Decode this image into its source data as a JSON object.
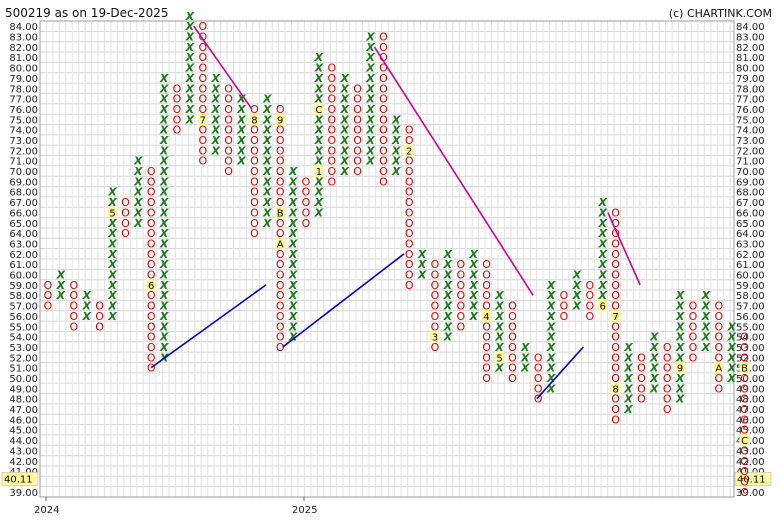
{
  "header": {
    "title": "500219 as on 19-Dec-2025",
    "credit": "(c) CHARTINK.COM"
  },
  "chart_data": {
    "type": "point-and-figure",
    "symbol": "500219",
    "as_on": "19-Dec-2025",
    "box_size": 1,
    "ylim": [
      39,
      84
    ],
    "y_ticks": [
      "84.00",
      "83.00",
      "82.00",
      "81.00",
      "80.00",
      "79.00",
      "78.00",
      "77.00",
      "76.00",
      "75.00",
      "74.00",
      "73.00",
      "72.00",
      "71.00",
      "70.00",
      "69.00",
      "68.00",
      "67.00",
      "66.00",
      "65.00",
      "64.00",
      "63.00",
      "62.00",
      "61.00",
      "60.00",
      "59.00",
      "58.00",
      "57.00",
      "56.00",
      "55.00",
      "54.00",
      "53.00",
      "52.00",
      "51.00",
      "50.00",
      "49.00",
      "48.00",
      "47.00",
      "46.00",
      "45.00",
      "44.00",
      "43.00",
      "42.00",
      "41.00",
      "40.00",
      "39.00"
    ],
    "last_price": "40.11",
    "x_labels": [
      {
        "label": "2024",
        "column": 0
      },
      {
        "label": "2025",
        "column": 20
      }
    ],
    "grid": true,
    "colors": {
      "x": "#1f7a1f",
      "o": "#dd0000",
      "support": "#0000cc",
      "resistance": "#cc0099",
      "highlight": "#fff6a0"
    },
    "columns": [
      {
        "type": "O",
        "high": 59,
        "low": 57
      },
      {
        "type": "X",
        "high": 60,
        "low": 58
      },
      {
        "type": "O",
        "high": 59,
        "low": 55
      },
      {
        "type": "X",
        "high": 58,
        "low": 56
      },
      {
        "type": "O",
        "high": 57,
        "low": 55
      },
      {
        "type": "X",
        "high": 68,
        "low": 56,
        "markers": [
          {
            "box": 66,
            "label": "5"
          }
        ]
      },
      {
        "type": "O",
        "high": 67,
        "low": 64
      },
      {
        "type": "X",
        "high": 71,
        "low": 65
      },
      {
        "type": "O",
        "high": 70,
        "low": 51,
        "markers": [
          {
            "box": 59,
            "label": "6"
          }
        ]
      },
      {
        "type": "X",
        "high": 79,
        "low": 52
      },
      {
        "type": "O",
        "high": 78,
        "low": 74
      },
      {
        "type": "X",
        "high": 85,
        "low": 75
      },
      {
        "type": "O",
        "high": 84,
        "low": 71,
        "markers": [
          {
            "box": 75,
            "label": "7"
          }
        ]
      },
      {
        "type": "X",
        "high": 79,
        "low": 72
      },
      {
        "type": "O",
        "high": 78,
        "low": 70
      },
      {
        "type": "X",
        "high": 77,
        "low": 71
      },
      {
        "type": "O",
        "high": 76,
        "low": 64,
        "markers": [
          {
            "box": 75,
            "label": "8"
          }
        ]
      },
      {
        "type": "X",
        "high": 77,
        "low": 65
      },
      {
        "type": "O",
        "high": 76,
        "low": 53,
        "markers": [
          {
            "box": 75,
            "label": "9"
          },
          {
            "box": 63,
            "label": "A"
          },
          {
            "box": 66,
            "label": "B"
          }
        ]
      },
      {
        "type": "X",
        "high": 70,
        "low": 54
      },
      {
        "type": "O",
        "high": 69,
        "low": 65
      },
      {
        "type": "X",
        "high": 81,
        "low": 66,
        "markers": [
          {
            "box": 76,
            "label": "C"
          },
          {
            "box": 70,
            "label": "1"
          }
        ]
      },
      {
        "type": "O",
        "high": 80,
        "low": 69
      },
      {
        "type": "X",
        "high": 79,
        "low": 70
      },
      {
        "type": "O",
        "high": 78,
        "low": 70
      },
      {
        "type": "X",
        "high": 83,
        "low": 71
      },
      {
        "type": "O",
        "high": 83,
        "low": 69
      },
      {
        "type": "X",
        "high": 75,
        "low": 70
      },
      {
        "type": "O",
        "high": 74,
        "low": 59,
        "markers": [
          {
            "box": 72,
            "label": "2"
          }
        ]
      },
      {
        "type": "X",
        "high": 62,
        "low": 60
      },
      {
        "type": "O",
        "high": 61,
        "low": 53,
        "markers": [
          {
            "box": 54,
            "label": "3"
          }
        ]
      },
      {
        "type": "X",
        "high": 62,
        "low": 54
      },
      {
        "type": "O",
        "high": 61,
        "low": 55
      },
      {
        "type": "X",
        "high": 62,
        "low": 56
      },
      {
        "type": "O",
        "high": 61,
        "low": 50,
        "markers": [
          {
            "box": 56,
            "label": "4"
          }
        ]
      },
      {
        "type": "X",
        "high": 58,
        "low": 51,
        "markers": [
          {
            "box": 52,
            "label": "5"
          }
        ]
      },
      {
        "type": "O",
        "high": 57,
        "low": 50
      },
      {
        "type": "X",
        "high": 53,
        "low": 51
      },
      {
        "type": "O",
        "high": 52,
        "low": 48
      },
      {
        "type": "X",
        "high": 59,
        "low": 49
      },
      {
        "type": "O",
        "high": 58,
        "low": 56
      },
      {
        "type": "X",
        "high": 60,
        "low": 57
      },
      {
        "type": "O",
        "high": 59,
        "low": 56
      },
      {
        "type": "X",
        "high": 67,
        "low": 57,
        "markers": [
          {
            "box": 57,
            "label": "6"
          }
        ]
      },
      {
        "type": "O",
        "high": 66,
        "low": 46,
        "markers": [
          {
            "box": 56,
            "label": "7"
          },
          {
            "box": 49,
            "label": "8"
          }
        ]
      },
      {
        "type": "X",
        "high": 53,
        "low": 47
      },
      {
        "type": "O",
        "high": 52,
        "low": 48
      },
      {
        "type": "X",
        "high": 54,
        "low": 49
      },
      {
        "type": "O",
        "high": 53,
        "low": 47
      },
      {
        "type": "X",
        "high": 58,
        "low": 48,
        "markers": [
          {
            "box": 51,
            "label": "9"
          }
        ]
      },
      {
        "type": "O",
        "high": 57,
        "low": 52
      },
      {
        "type": "X",
        "high": 58,
        "low": 53
      },
      {
        "type": "O",
        "high": 57,
        "low": 49,
        "markers": [
          {
            "box": 51,
            "label": "A"
          }
        ]
      },
      {
        "type": "X",
        "high": 55,
        "low": 50
      },
      {
        "type": "O",
        "high": 54,
        "low": 39,
        "markers": [
          {
            "box": 51,
            "label": "B"
          },
          {
            "box": 44,
            "label": "C"
          }
        ]
      }
    ],
    "trendlines": [
      {
        "kind": "support",
        "from": {
          "col": 8,
          "box": 51
        },
        "to": {
          "col": 16.9,
          "box": 59
        }
      },
      {
        "kind": "resistance",
        "from": {
          "col": 11.3,
          "box": 84
        },
        "to": {
          "col": 15.8,
          "box": 76
        }
      },
      {
        "kind": "support",
        "from": {
          "col": 18.2,
          "box": 53
        },
        "to": {
          "col": 27.6,
          "box": 62
        }
      },
      {
        "kind": "resistance",
        "from": {
          "col": 25.3,
          "box": 82
        },
        "to": {
          "col": 37.6,
          "box": 58
        }
      },
      {
        "kind": "support",
        "from": {
          "col": 37.9,
          "box": 48
        },
        "to": {
          "col": 41.5,
          "box": 53
        }
      },
      {
        "kind": "resistance",
        "from": {
          "col": 43.4,
          "box": 66
        },
        "to": {
          "col": 45.9,
          "box": 59
        }
      }
    ]
  }
}
